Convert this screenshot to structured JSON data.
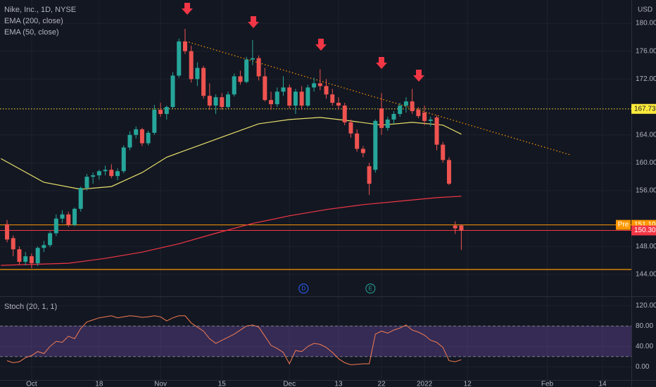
{
  "chart_data": {
    "type": "candlestick",
    "title": "Nike, Inc., 1D, NYSE",
    "currency": "USD",
    "up_color": "#26a69a",
    "down_color": "#ef5350",
    "grid": true,
    "xlim": [
      -1.15,
      101.7
    ],
    "xticks": [
      {
        "value": 4,
        "label": "Oct"
      },
      {
        "value": 15,
        "label": "18"
      },
      {
        "value": 25,
        "label": "Nov"
      },
      {
        "value": 35,
        "label": "15"
      },
      {
        "value": 46,
        "label": "Dec"
      },
      {
        "value": 54,
        "label": "13"
      },
      {
        "value": 61,
        "label": "22"
      },
      {
        "value": 68,
        "label": "2022"
      },
      {
        "value": 75,
        "label": "12"
      },
      {
        "value": 88,
        "label": "Feb"
      },
      {
        "value": 97,
        "label": "14"
      }
    ],
    "ylim": [
      140.87,
      183.34
    ],
    "yticks": [
      {
        "value": 144,
        "label": "144.00"
      },
      {
        "value": 148,
        "label": "148.00"
      },
      {
        "value": 156,
        "label": "156.00"
      },
      {
        "value": 160,
        "label": "160.00"
      },
      {
        "value": 164,
        "label": "164.00"
      },
      {
        "value": 172,
        "label": "172.00"
      },
      {
        "value": 176,
        "label": "176.00"
      },
      {
        "value": 180,
        "label": "180.00"
      }
    ],
    "open": [
      151.2,
      149.2,
      147.6,
      145.8,
      146.6,
      145.6,
      147.8,
      148.2,
      149.9,
      152.0,
      152.6,
      151.1,
      153.4,
      156.4,
      158.0,
      158.2,
      158.8,
      159.0,
      158.1,
      158.8,
      162.2,
      164.0,
      164.8,
      162.8,
      164.3,
      167.6,
      167.0,
      168.0,
      172.5,
      177.4,
      176.0,
      172.0,
      173.6,
      169.6,
      168.2,
      169.4,
      168.0,
      169.8,
      172.4,
      171.6,
      174.8,
      175.0,
      172.4,
      169.0,
      168.4,
      170.2,
      170.8,
      168.2,
      170.2,
      168.2,
      170.8,
      171.4,
      171.0,
      169.8,
      168.6,
      168.2,
      165.8,
      164.2,
      162.0,
      159.5,
      159.0,
      167.8,
      165.0,
      166.2,
      167.0,
      168.2,
      168.8,
      167.6,
      167.2,
      166.0,
      166.5,
      162.6,
      160.4,
      151.0,
      151.0
    ],
    "high": [
      151.8,
      149.6,
      148.0,
      147.2,
      147.0,
      148.0,
      148.8,
      150.2,
      152.6,
      153.2,
      153.0,
      153.6,
      156.6,
      158.4,
      158.6,
      159.0,
      159.6,
      159.8,
      159.2,
      162.5,
      164.5,
      165.2,
      165.0,
      164.6,
      168.3,
      168.6,
      168.2,
      173.0,
      177.8,
      179.2,
      176.8,
      174.4,
      173.9,
      171.4,
      169.8,
      170.0,
      170.2,
      172.8,
      173.2,
      175.2,
      177.6,
      175.4,
      173.6,
      170.2,
      170.8,
      172.4,
      171.2,
      170.6,
      171.0,
      171.2,
      172.2,
      173.4,
      172.0,
      170.6,
      169.4,
      168.6,
      166.2,
      164.8,
      162.4,
      160.0,
      166.2,
      170.0,
      166.6,
      167.4,
      168.6,
      169.4,
      170.6,
      168.0,
      168.2,
      166.6,
      166.8,
      163.0,
      160.8,
      151.6,
      151.2
    ],
    "low": [
      148.6,
      146.6,
      145.4,
      145.3,
      144.9,
      145.2,
      147.2,
      147.9,
      149.5,
      151.4,
      150.8,
      150.9,
      153.0,
      156.0,
      157.0,
      157.6,
      158.2,
      157.8,
      157.5,
      158.5,
      161.8,
      163.5,
      162.4,
      162.5,
      164.0,
      166.6,
      166.2,
      167.8,
      172.2,
      175.6,
      171.5,
      171.0,
      169.2,
      167.6,
      167.0,
      167.6,
      167.8,
      169.5,
      171.2,
      171.4,
      174.0,
      171.8,
      168.8,
      167.6,
      168.0,
      169.6,
      167.8,
      167.0,
      167.6,
      168.0,
      170.2,
      170.4,
      169.2,
      168.2,
      167.6,
      165.4,
      163.6,
      161.6,
      160.8,
      155.4,
      158.6,
      164.0,
      164.6,
      165.6,
      166.6,
      167.2,
      167.0,
      166.4,
      165.4,
      165.2,
      161.8,
      160.0,
      156.8,
      149.8,
      147.5
    ],
    "close": [
      149.0,
      147.6,
      145.8,
      146.6,
      145.6,
      147.8,
      148.2,
      149.9,
      152.0,
      152.6,
      151.1,
      153.4,
      156.4,
      158.0,
      158.2,
      158.8,
      159.0,
      158.1,
      158.8,
      162.2,
      164.0,
      164.8,
      162.8,
      164.3,
      167.6,
      167.0,
      168.0,
      172.5,
      177.4,
      176.0,
      172.0,
      173.6,
      169.6,
      168.2,
      169.4,
      168.0,
      169.8,
      172.4,
      171.6,
      174.8,
      175.0,
      172.4,
      169.0,
      168.4,
      170.2,
      170.8,
      168.2,
      170.2,
      168.2,
      170.8,
      171.4,
      171.0,
      169.8,
      168.6,
      168.2,
      165.8,
      164.2,
      162.0,
      161.4,
      157.0,
      166.0,
      165.0,
      166.2,
      167.0,
      168.2,
      168.8,
      167.4,
      166.7,
      166.0,
      166.2,
      162.6,
      160.4,
      157.0,
      150.6,
      150.3
    ],
    "series": [
      {
        "name": "EMA (200, close)",
        "color": "#f23645",
        "x": [
          -1,
          10,
          16,
          22,
          28,
          34,
          40,
          46,
          52,
          58,
          64,
          70,
          74
        ],
        "values": [
          145.3,
          145.6,
          146.3,
          147.2,
          148.4,
          149.9,
          151.3,
          152.4,
          153.3,
          154.0,
          154.5,
          155.0,
          155.2
        ]
      },
      {
        "name": "EMA (50, close)",
        "color": "#e8df6a",
        "x": [
          -1,
          6,
          12,
          17,
          22,
          26,
          31,
          36,
          41,
          46,
          51,
          56,
          61,
          66,
          71,
          74
        ],
        "values": [
          160.6,
          157.2,
          156.2,
          156.6,
          158.6,
          160.8,
          162.4,
          164.0,
          165.6,
          166.2,
          166.5,
          166.0,
          165.4,
          165.8,
          165.4,
          164.1
        ]
      }
    ],
    "price_lines": [
      {
        "value": 167.73,
        "label": "167.73",
        "color": "#ffeb3b",
        "dotted": true
      },
      {
        "value": 151.1,
        "label": "151.10",
        "color": "#ff9800",
        "tag": "Pre"
      },
      {
        "value": 150.3,
        "label": "150.30",
        "color": "#f23645"
      }
    ],
    "support_line": {
      "value": 144.7,
      "color": "#ff9800"
    },
    "trendline": {
      "x": [
        29.6,
        91.9
      ],
      "values": [
        177.3,
        161.1
      ],
      "color": "#ff9800"
    },
    "events": [
      {
        "label": "D",
        "x": 48.3,
        "color": "#2962ff"
      },
      {
        "label": "E",
        "x": 59.2,
        "color": "#26a69a"
      }
    ],
    "stoch": {
      "title": "Stoch (20, 1, 1)",
      "color": "#f57c50",
      "band": [
        20,
        80
      ],
      "band_color": "#7e57c2",
      "ylim": [
        -25.8,
        137
      ],
      "yticks": [
        {
          "value": 0,
          "label": "0.00"
        },
        {
          "value": 40,
          "label": "40.00"
        },
        {
          "value": 80,
          "label": "80.00"
        },
        {
          "value": 120,
          "label": "120.00"
        }
      ],
      "values": [
        12,
        8,
        10,
        18,
        22,
        30,
        26,
        40,
        50,
        48,
        60,
        55,
        75,
        88,
        92,
        96,
        98,
        100,
        96,
        98,
        100,
        99,
        97,
        98,
        100,
        98,
        90,
        96,
        100,
        100,
        86,
        78,
        70,
        55,
        46,
        52,
        58,
        64,
        72,
        80,
        82,
        78,
        60,
        42,
        36,
        28,
        6,
        32,
        30,
        40,
        46,
        44,
        38,
        28,
        16,
        8,
        4,
        5,
        6,
        6,
        64,
        70,
        66,
        72,
        76,
        82,
        72,
        68,
        62,
        52,
        48,
        38,
        12,
        10,
        14
      ]
    }
  }
}
